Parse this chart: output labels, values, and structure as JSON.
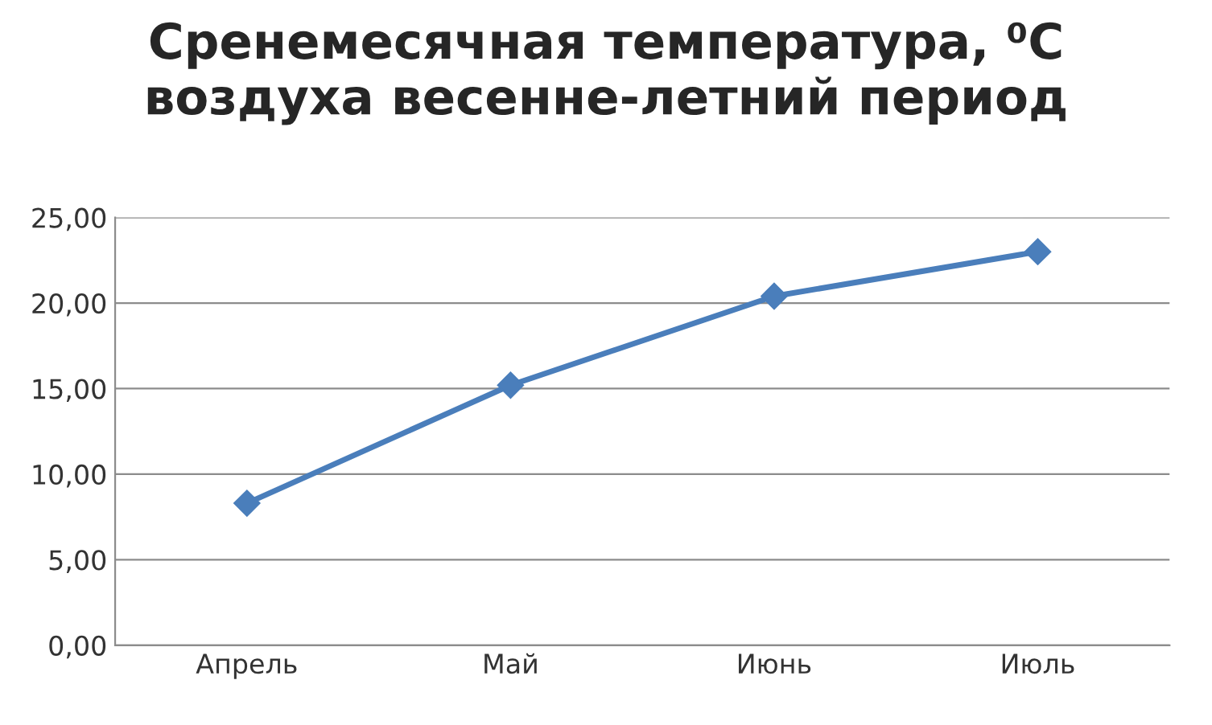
{
  "chart_data": {
    "type": "line",
    "title": "Сренемесячная температура, ⁰C\nвоздуха весенне-летний период",
    "categories": [
      "Апрель",
      "Май",
      "Июнь",
      "Июль"
    ],
    "series": [
      {
        "color": "#4a7ebb",
        "values": [
          8.3,
          15.2,
          20.4,
          23.0
        ]
      }
    ],
    "ylim": [
      0,
      25
    ],
    "yticks": [
      {
        "value": 0,
        "label": "0,00"
      },
      {
        "value": 5,
        "label": "5,00"
      },
      {
        "value": 10,
        "label": "10,00"
      },
      {
        "value": 15,
        "label": "15,00"
      },
      {
        "value": 20,
        "label": "20,00"
      },
      {
        "value": 25,
        "label": "25,00"
      }
    ],
    "grid": "y",
    "marker": "diamond",
    "line_style": "solid"
  }
}
